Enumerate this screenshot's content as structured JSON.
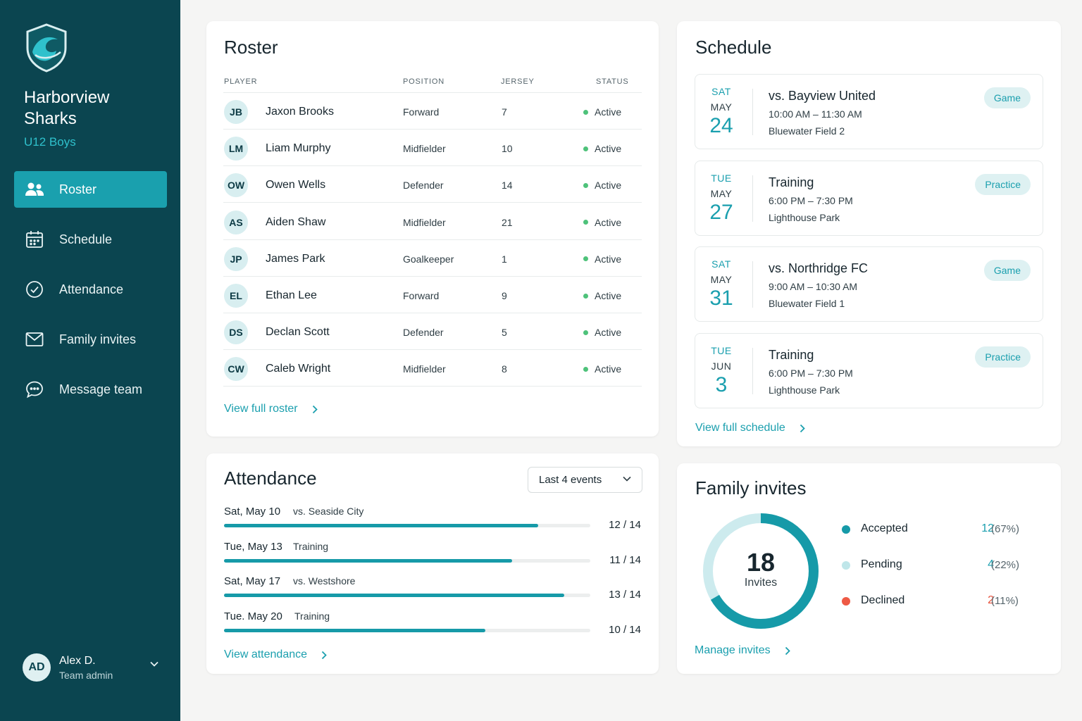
{
  "sidebar": {
    "team_name": "Harborview Sharks",
    "team_sub": "U12 Boys",
    "nav": [
      {
        "label": "Roster",
        "icon": "users-icon",
        "active": true
      },
      {
        "label": "Schedule",
        "icon": "calendar-icon",
        "active": false
      },
      {
        "label": "Attendance",
        "icon": "check-circle-icon",
        "active": false
      },
      {
        "label": "Family invites",
        "icon": "mail-icon",
        "active": false
      },
      {
        "label": "Message team",
        "icon": "chat-icon",
        "active": false
      }
    ],
    "user": {
      "initials": "AD",
      "name": "Alex D.",
      "role": "Team admin"
    }
  },
  "roster": {
    "title": "Roster",
    "headers": {
      "player": "PLAYER",
      "position": "POSITION",
      "jersey": "JERSEY",
      "status": "STATUS"
    },
    "players": [
      {
        "initials": "JB",
        "name": "Jaxon Brooks",
        "position": "Forward",
        "jersey": "7",
        "status": "Active"
      },
      {
        "initials": "LM",
        "name": "Liam Murphy",
        "position": "Midfielder",
        "jersey": "10",
        "status": "Active"
      },
      {
        "initials": "OW",
        "name": "Owen Wells",
        "position": "Defender",
        "jersey": "14",
        "status": "Active"
      },
      {
        "initials": "AS",
        "name": "Aiden Shaw",
        "position": "Midfielder",
        "jersey": "21",
        "status": "Active"
      },
      {
        "initials": "JP",
        "name": "James Park",
        "position": "Goalkeeper",
        "jersey": "1",
        "status": "Active"
      },
      {
        "initials": "EL",
        "name": "Ethan Lee",
        "position": "Forward",
        "jersey": "9",
        "status": "Active"
      },
      {
        "initials": "DS",
        "name": "Declan Scott",
        "position": "Defender",
        "jersey": "5",
        "status": "Active"
      },
      {
        "initials": "CW",
        "name": "Caleb Wright",
        "position": "Midfielder",
        "jersey": "8",
        "status": "Active"
      }
    ],
    "link": "View full roster"
  },
  "attendance": {
    "title": "Attendance",
    "filter": "Last 4 events",
    "events": [
      {
        "date": "Sat, May 10",
        "event": "vs. Seaside City",
        "value": "12 / 14",
        "attended": 12,
        "total": 14
      },
      {
        "date": "Tue, May 13",
        "event": "Training",
        "value": "11 / 14",
        "attended": 11,
        "total": 14
      },
      {
        "date": "Sat, May 17",
        "event": "vs. Westshore",
        "value": "13 / 14",
        "attended": 13,
        "total": 14
      },
      {
        "date": "Tue. May 20",
        "event": "Training",
        "value": "10 / 14",
        "attended": 10,
        "total": 14
      }
    ],
    "link": "View attendance"
  },
  "schedule": {
    "title": "Schedule",
    "events": [
      {
        "dow": "SAT",
        "month": "MAY",
        "day": "24",
        "title": "vs. Bayview United",
        "time": "10:00 AM – 11:30 AM",
        "location": "Bluewater Field 2",
        "badge": "Game"
      },
      {
        "dow": "TUE",
        "month": "MAY",
        "day": "27",
        "title": "Training",
        "time": "6:00 PM – 7:30 PM",
        "location": "Lighthouse Park",
        "badge": "Practice"
      },
      {
        "dow": "SAT",
        "month": "MAY",
        "day": "31",
        "title": "vs. Northridge FC",
        "time": "9:00 AM – 10:30 AM",
        "location": "Bluewater Field 1",
        "badge": "Game"
      },
      {
        "dow": "TUE",
        "month": "JUN",
        "day": "3",
        "title": "Training",
        "time": "6:00 PM – 7:30 PM",
        "location": "Lighthouse Park",
        "badge": "Practice"
      }
    ],
    "link": "View full schedule"
  },
  "invites": {
    "title": "Family invites",
    "total": "18",
    "total_label": "Invites",
    "items": [
      {
        "label": "Accepted",
        "count": "12",
        "pct": "(67%)",
        "value": 12,
        "color": "#169aa8",
        "num_color": "#1a9fae"
      },
      {
        "label": "Pending",
        "count": "4",
        "pct": "(22%)",
        "value": 4,
        "color": "#bfe6e9",
        "num_color": "#1a9fae"
      },
      {
        "label": "Declined",
        "count": "2",
        "pct": "(11%)",
        "value": 2,
        "color": "#ee5a45",
        "num_color": "#e8513c"
      }
    ],
    "link": "Manage invites"
  }
}
